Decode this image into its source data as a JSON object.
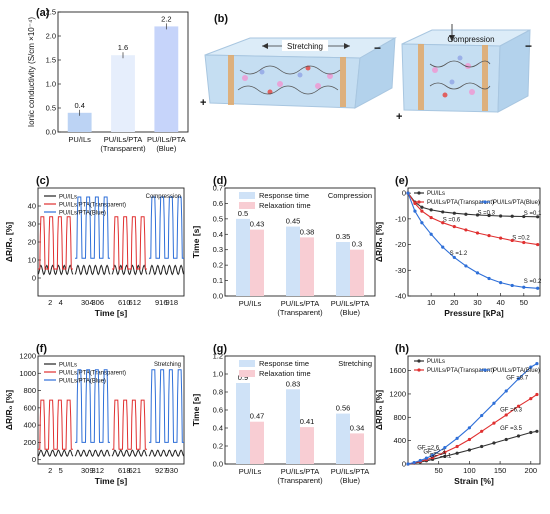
{
  "panel_labels": {
    "a": "(a)",
    "b": "(b)",
    "c": "(c)",
    "d": "(d)",
    "e": "(e)",
    "f": "(f)",
    "g": "(g)",
    "h": "(h)"
  },
  "chart_data": [
    {
      "id": "a",
      "type": "bar",
      "ylabel": "Ionic conductivity (S/cm ×10⁻⁴)",
      "categories": [
        [
          "PU/ILs"
        ],
        [
          "PU/ILs/PTA",
          "(Transparent)"
        ],
        [
          "PU/ILs/PTA",
          "(Blue)"
        ]
      ],
      "values": [
        0.4,
        1.6,
        2.2
      ],
      "value_labels": [
        "0.4",
        "1.6",
        "2.2"
      ],
      "ylim": [
        0,
        2.5
      ],
      "yticks": [
        "0.0",
        "0.5",
        "1.0",
        "1.5",
        "2.0",
        "2.5"
      ],
      "colors": [
        "#bcd3f4",
        "#e6eefc",
        "#c6d4fa"
      ]
    },
    {
      "id": "c",
      "type": "line",
      "mode": "Compression",
      "ylabel": "ΔR/R₀ [%]",
      "xlabel": "Time [s]",
      "ylim": [
        -10,
        50
      ],
      "yticks": [
        "0",
        "10",
        "20",
        "30",
        "40"
      ],
      "xticks": [
        "2",
        "4",
        "304",
        "306",
        "610",
        "612",
        "916",
        "918"
      ],
      "series": [
        {
          "name": "PU/ILs",
          "color": "#222222",
          "baseline": 2,
          "amp": 7
        },
        {
          "name": "PU/ILs/PTA(Transparent)",
          "color": "#e03030",
          "baseline": 5,
          "amp": 34
        },
        {
          "name": "PU/ILs/PTA(Blue)",
          "color": "#2e6fd8",
          "baseline": 11,
          "amp": 45
        }
      ]
    },
    {
      "id": "d",
      "type": "bar",
      "mode": "Compression",
      "ylabel": "Time [s]",
      "ylim": [
        0,
        0.7
      ],
      "yticks": [
        "0.0",
        "0.1",
        "0.2",
        "0.3",
        "0.4",
        "0.5",
        "0.6",
        "0.7"
      ],
      "categories": [
        [
          "PU/ILs"
        ],
        [
          "PU/ILs/PTA",
          "(Transparent)"
        ],
        [
          "PU/ILs/PTA",
          "(Blue)"
        ]
      ],
      "series": [
        {
          "name": "Response time",
          "color": "#cfe2f7",
          "values": [
            0.5,
            0.45,
            0.35
          ],
          "value_labels": [
            "0.5",
            "0.45",
            "0.35"
          ]
        },
        {
          "name": "Relaxation time",
          "color": "#f8cdd3",
          "values": [
            0.43,
            0.38,
            0.3
          ],
          "value_labels": [
            "0.43",
            "0.38",
            "0.3"
          ]
        }
      ]
    },
    {
      "id": "e",
      "type": "line",
      "xlabel": "Pressure [kPa]",
      "ylabel": "ΔR/R₀ [%]",
      "xlim": [
        0,
        57
      ],
      "ylim": [
        -40,
        2
      ],
      "xticks": [
        "10",
        "20",
        "30",
        "40",
        "50"
      ],
      "yticks": [
        "0",
        "-10",
        "-20",
        "-30",
        "-40"
      ],
      "series": [
        {
          "name": "PU/ILs",
          "color": "#333333",
          "x": [
            0,
            3,
            6,
            10,
            15,
            20,
            25,
            30,
            35,
            40,
            45,
            50,
            56
          ],
          "y": [
            0,
            -3.5,
            -5.5,
            -6.5,
            -7.3,
            -7.8,
            -8.2,
            -8.5,
            -8.7,
            -8.9,
            -9,
            -9.1,
            -9.2
          ]
        },
        {
          "name": "PU/ILs/PTA(Transparent)",
          "color": "#e03030",
          "x": [
            0,
            3,
            6,
            10,
            15,
            20,
            25,
            30,
            35,
            40,
            45,
            50,
            56
          ],
          "y": [
            0,
            -4,
            -7,
            -9.5,
            -11.5,
            -13,
            -14.3,
            -15.5,
            -16.5,
            -17.5,
            -18.4,
            -19.2,
            -20
          ]
        },
        {
          "name": "PU/ILs/PTA(Blue)",
          "color": "#2e6fd8",
          "x": [
            0,
            3,
            6,
            10,
            15,
            20,
            25,
            30,
            35,
            40,
            45,
            50,
            56
          ],
          "y": [
            0,
            -7,
            -11.5,
            -16,
            -21,
            -25,
            -28.3,
            -31,
            -33.2,
            -34.8,
            -35.9,
            -36.6,
            -37
          ]
        }
      ],
      "annotations": [
        "S =0.3",
        "S =0.1",
        "S =0.6",
        "S =0.2",
        "S =1.2",
        "S =0.2"
      ]
    },
    {
      "id": "f",
      "type": "line",
      "mode": "Stretching",
      "ylabel": "ΔR/R₀ [%]",
      "xlabel": "Time [s]",
      "ylim": [
        -50,
        1200
      ],
      "yticks": [
        "0",
        "200",
        "400",
        "600",
        "800",
        "1000",
        "1200"
      ],
      "xticks": [
        "2",
        "5",
        "309",
        "312",
        "618",
        "621",
        "927",
        "930"
      ],
      "series": [
        {
          "name": "PU/ILs",
          "color": "#222222",
          "baseline": 40,
          "amp": 110
        },
        {
          "name": "PU/ILs/PTA(Transparent)",
          "color": "#e03030",
          "baseline": 120,
          "amp": 690
        },
        {
          "name": "PU/ILs/PTA(Blue)",
          "color": "#2e6fd8",
          "baseline": 200,
          "amp": 1040
        }
      ]
    },
    {
      "id": "g",
      "type": "bar",
      "mode": "Stretching",
      "ylabel": "Time [s]",
      "ylim": [
        0,
        1.2
      ],
      "yticks": [
        "0.0",
        "0.2",
        "0.4",
        "0.6",
        "0.8",
        "1.0",
        "1.2"
      ],
      "categories": [
        [
          "PU/ILs"
        ],
        [
          "PU/ILs/PTA",
          "(Transparent)"
        ],
        [
          "PU/ILs/PTA",
          "(Blue)"
        ]
      ],
      "series": [
        {
          "name": "Response time",
          "color": "#cfe2f7",
          "values": [
            0.9,
            0.83,
            0.56
          ],
          "value_labels": [
            "0.9",
            "0.83",
            "0.56"
          ]
        },
        {
          "name": "Relaxation time",
          "color": "#f8cdd3",
          "values": [
            0.47,
            0.41,
            0.34
          ],
          "value_labels": [
            "0.47",
            "0.41",
            "0.34"
          ]
        }
      ]
    },
    {
      "id": "h",
      "type": "line",
      "xlabel": "Strain [%]",
      "ylabel": "ΔR/R₀ [%]",
      "xlim": [
        0,
        215
      ],
      "ylim": [
        0,
        1850
      ],
      "xticks": [
        "50",
        "100",
        "150",
        "200"
      ],
      "yticks": [
        "0",
        "400",
        "800",
        "1200",
        "1600"
      ],
      "series": [
        {
          "name": "PU/ILs",
          "color": "#333333",
          "x": [
            0,
            10,
            20,
            30,
            40,
            60,
            80,
            100,
            120,
            140,
            160,
            180,
            200,
            210
          ],
          "y": [
            0,
            15,
            35,
            55,
            80,
            130,
            185,
            240,
            300,
            360,
            420,
            480,
            540,
            560
          ]
        },
        {
          "name": "PU/ILs/PTA(Transparent)",
          "color": "#e03030",
          "x": [
            0,
            10,
            20,
            30,
            40,
            60,
            80,
            100,
            120,
            140,
            160,
            180,
            200,
            210
          ],
          "y": [
            0,
            20,
            45,
            75,
            110,
            200,
            300,
            420,
            560,
            700,
            840,
            990,
            1120,
            1190
          ]
        },
        {
          "name": "PU/ILs/PTA(Blue)",
          "color": "#2e6fd8",
          "x": [
            0,
            10,
            20,
            30,
            40,
            60,
            80,
            100,
            120,
            140,
            160,
            180,
            200,
            210
          ],
          "y": [
            0,
            25,
            60,
            100,
            150,
            280,
            440,
            620,
            830,
            1040,
            1250,
            1460,
            1660,
            1720
          ]
        }
      ],
      "annotations": [
        "GF =8.7",
        "GF =6.3",
        "GF =3.5",
        "GF =2.6",
        "GF =2.3",
        "GF =2.1"
      ]
    }
  ],
  "diagram_b": {
    "stretch_label": "Stretching",
    "compress_label": "Compression",
    "plus": "+",
    "minus": "−"
  }
}
